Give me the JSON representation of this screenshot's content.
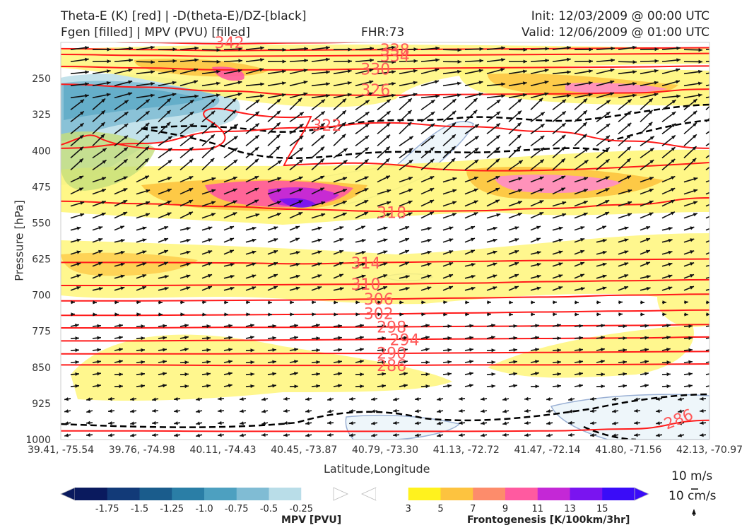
{
  "titles": {
    "left_line1": "Theta-E (K) [red] | -D(theta-E)/DZ-[black]",
    "left_line2": "Fgen [filled] | MPV (PVU) [filled]",
    "fhr": "FHR:73",
    "init": "Init: 12/03/2009 @ 00:00 UTC",
    "valid": "Valid: 12/06/2009 @ 01:00 UTC"
  },
  "axes": {
    "xlabel": "Latitude,Longitude",
    "ylabel": "Pressure [hPa]"
  },
  "chart_data": {
    "type": "cross-section",
    "y_axis": {
      "label": "Pressure [hPa]",
      "ticks": [
        250,
        325,
        400,
        475,
        550,
        625,
        700,
        775,
        850,
        925,
        1000
      ],
      "range": [
        1000,
        175
      ],
      "inverted": true
    },
    "x_axis": {
      "label": "Latitude,Longitude",
      "ticks": [
        "39.41, -75.54",
        "39.76, -74.98",
        "40.11, -74.43",
        "40.45, -73.87",
        "40.79, -73.30",
        "41.13, -72.72",
        "41.47, -72.14",
        "41.80, -71.56",
        "42.13, -70.97"
      ]
    },
    "theta_e_contours": [
      {
        "level": "342",
        "p": [
          172,
          175,
          178,
          176,
          174,
          172,
          170,
          168,
          166
        ]
      },
      {
        "level": "338",
        "p": [
          188,
          190,
          192,
          191,
          190,
          189,
          188,
          187,
          186
        ]
      },
      {
        "level": "334",
        "p": [
          200,
          202,
          204,
          203,
          202,
          201,
          200,
          199,
          198
        ]
      },
      {
        "level": "330",
        "p": [
          225,
          228,
          232,
          232,
          230,
          228,
          227,
          226,
          224
        ]
      },
      {
        "level": "326",
        "p": [
          262,
          268,
          276,
          284,
          285,
          283,
          282,
          280,
          272
        ]
      },
      {
        "level": "322",
        "p": [
          395,
          385,
          360,
          352,
          342,
          350,
          360,
          380,
          395
        ]
      },
      {
        "level": "318",
        "p": [
          505,
          510,
          516,
          522,
          526,
          525,
          520,
          512,
          498
        ]
      },
      {
        "level": "314",
        "p": [
          632,
          632,
          633,
          635,
          632,
          630,
          628,
          626,
          625
        ]
      },
      {
        "level": "310",
        "p": [
          680,
          680,
          679,
          678,
          677,
          675,
          672,
          670,
          668
        ]
      },
      {
        "level": "306",
        "p": [
          712,
          712,
          711,
          710,
          708,
          706,
          704,
          700,
          698
        ]
      },
      {
        "level": "302",
        "p": [
          742,
          742,
          741,
          740,
          739,
          737,
          735,
          733,
          731
        ]
      },
      {
        "level": "298",
        "p": [
          768,
          768,
          767,
          767,
          766,
          765,
          764,
          763,
          761
        ]
      },
      {
        "level": "294",
        "p": [
          795,
          795,
          794,
          793,
          792,
          791,
          790,
          789,
          787
        ]
      },
      {
        "level": "290",
        "p": [
          822,
          822,
          822,
          821,
          821,
          820,
          819,
          818,
          817
        ]
      },
      {
        "level": "286",
        "p": [
          845,
          845,
          846,
          846,
          846,
          845,
          845,
          844,
          843
        ]
      },
      {
        "level": "286",
        "p": [
          982,
          982,
          983,
          983,
          983,
          983,
          982,
          978,
          960
        ]
      }
    ],
    "wind_reference": [
      "10 m/s",
      "10 cm/s"
    ],
    "colorbars": [
      {
        "title": "MPV [PVU]",
        "labels": [
          "-1.75",
          "-1.5",
          "-1.25",
          "-1.0",
          "-0.75",
          "-0.5",
          "-0.25"
        ],
        "colors": [
          "#0a1a5e",
          "#123a78",
          "#1a5c8c",
          "#2a7ea6",
          "#4da0c0",
          "#80bcd4",
          "#b9dde8",
          "#ffffff"
        ]
      },
      {
        "title": "Frontogenesis [K/100km/3hr]",
        "labels": [
          "3",
          "5",
          "7",
          "9",
          "11",
          "13",
          "15"
        ],
        "colors": [
          "#ffffff",
          "#fff21e",
          "#fdc33f",
          "#fd8c6b",
          "#ff5aa0",
          "#c428d6",
          "#7a14f0",
          "#3a0cf8"
        ]
      }
    ],
    "colors": {
      "theta_e": "#ff1a1a",
      "theta_e_label": "#ff5a5a",
      "dthetae_dz": "#000000",
      "mpv_outline": "#9ab0d4"
    }
  }
}
